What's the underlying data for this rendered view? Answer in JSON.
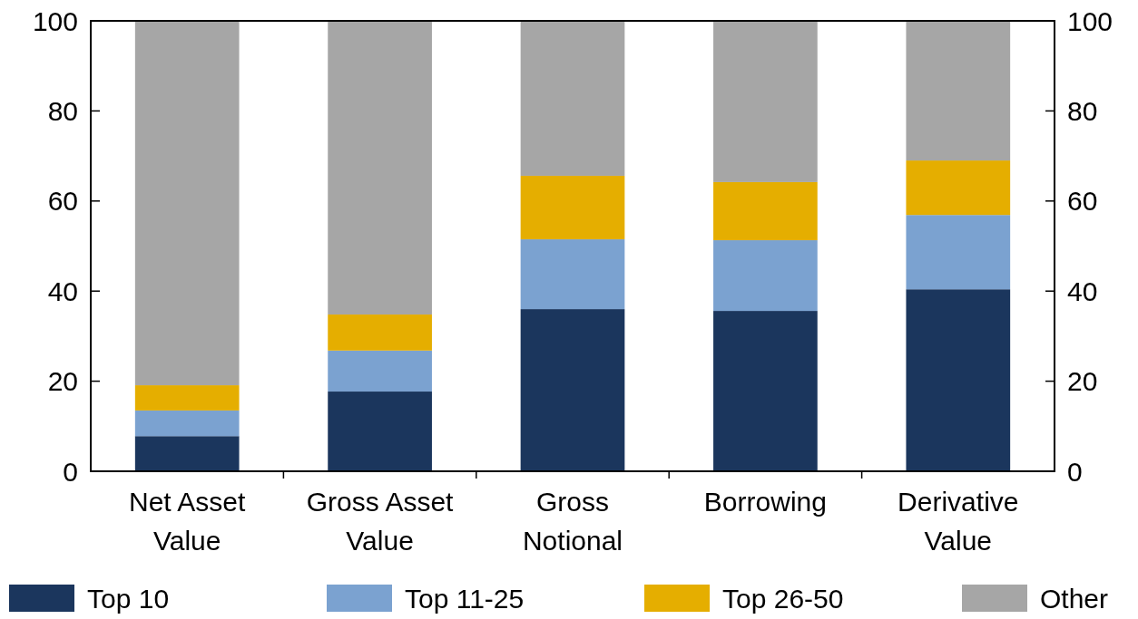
{
  "chart_data": {
    "type": "bar",
    "stacked": true,
    "categories": [
      "Net Asset Value",
      "Gross Asset Value",
      "Gross Notional",
      "Borrowing",
      "Derivative Value"
    ],
    "series": [
      {
        "name": "Top 10",
        "color": "#1b365d",
        "values": [
          7.8,
          17.7,
          36.0,
          35.6,
          40.4
        ]
      },
      {
        "name": "Top 11-25",
        "color": "#7ba2d0",
        "values": [
          5.7,
          9.1,
          15.5,
          15.7,
          16.5
        ]
      },
      {
        "name": "Top 26-50",
        "color": "#e5ae00",
        "values": [
          5.6,
          8.0,
          14.1,
          12.9,
          12.1
        ]
      },
      {
        "name": "Other",
        "color": "#a6a6a6",
        "values": [
          80.9,
          65.2,
          34.4,
          35.8,
          31.0
        ]
      }
    ],
    "ylim": [
      0,
      100
    ],
    "yticks": [
      0,
      20,
      40,
      60,
      80,
      100
    ],
    "y2lim": [
      0,
      100
    ],
    "y2ticks": [
      0,
      20,
      40,
      60,
      80,
      100
    ],
    "grid": false,
    "legend": "bottom"
  }
}
